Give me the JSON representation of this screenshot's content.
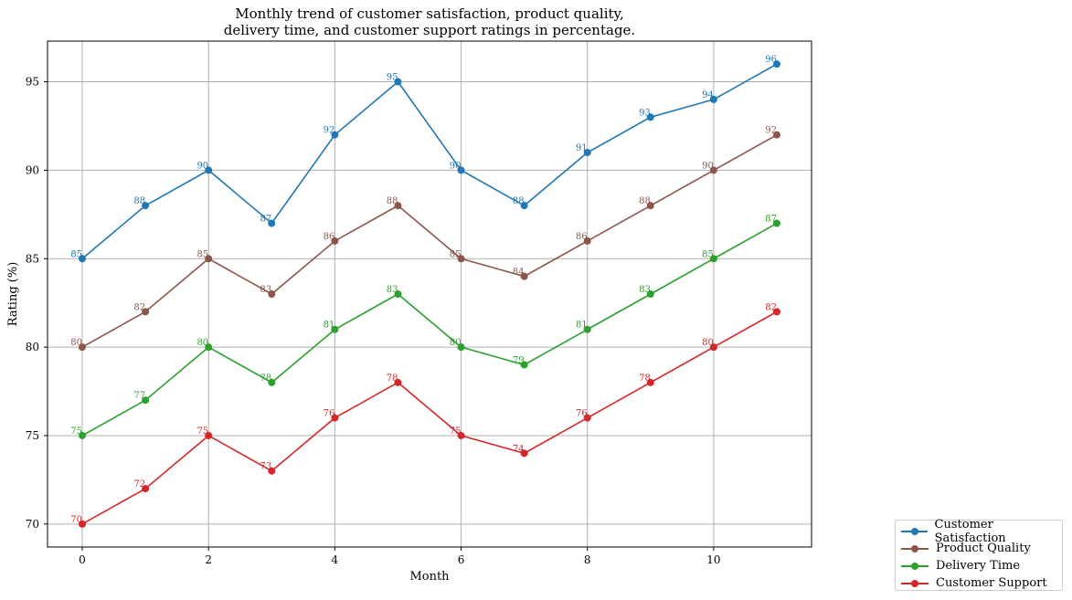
{
  "chart_data": {
    "type": "line",
    "title": "Monthly trend of customer satisfaction, product quality,\ndelivery time, and customer support ratings in percentage.",
    "xlabel": "Month",
    "ylabel": "Rating (%)",
    "x": [
      0,
      1,
      2,
      3,
      4,
      5,
      6,
      7,
      8,
      9,
      10,
      11
    ],
    "xticks": [
      0,
      2,
      4,
      6,
      8,
      10
    ],
    "yticks": [
      70,
      75,
      80,
      85,
      90,
      95
    ],
    "xlim": [
      -0.55,
      11.55
    ],
    "ylim": [
      68.7,
      97.3
    ],
    "grid": true,
    "legend_position": "bottom-right outside",
    "series": [
      {
        "name": "Customer Satisfaction",
        "color": "#1f77b4",
        "values": [
          85,
          88,
          90,
          87,
          92,
          95,
          90,
          88,
          91,
          93,
          94,
          96
        ]
      },
      {
        "name": "Product Quality",
        "color": "#8c564b",
        "values": [
          80,
          82,
          85,
          83,
          86,
          88,
          85,
          84,
          86,
          88,
          90,
          92
        ]
      },
      {
        "name": "Delivery Time",
        "color": "#2ca02c",
        "values": [
          75,
          77,
          80,
          78,
          81,
          83,
          80,
          79,
          81,
          83,
          85,
          87
        ]
      },
      {
        "name": "Customer Support",
        "color": "#d62728",
        "values": [
          70,
          72,
          75,
          73,
          76,
          78,
          75,
          74,
          76,
          78,
          80,
          82
        ]
      }
    ]
  }
}
